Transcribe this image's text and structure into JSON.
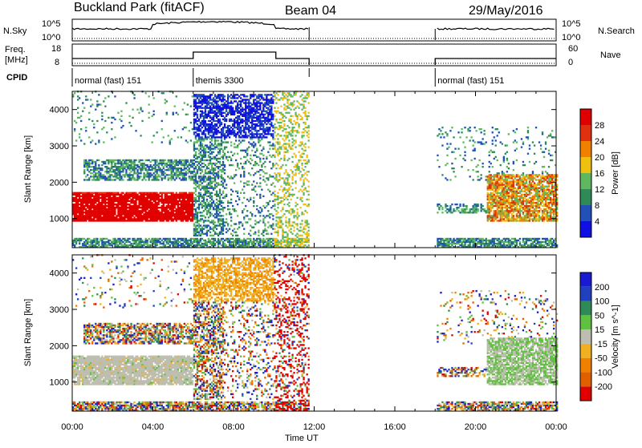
{
  "header": {
    "station": "Buckland Park (fitACF)",
    "beam": "Beam 04",
    "date": "29/May/2016"
  },
  "strip": {
    "nsky_label": "N.Sky",
    "nsky_ticks": [
      "10^5",
      "10^0"
    ],
    "nsearch_label": "N.Search",
    "nsearch_ticks": [
      "10^5",
      "10^0"
    ],
    "freq_label": [
      "Freq.",
      "[MHz]"
    ],
    "freq_ticks": [
      "18",
      "8"
    ],
    "nave_label": "Nave",
    "nave_ticks": [
      "60",
      "0"
    ],
    "cpid_label": "CPID",
    "cpid_segments": [
      {
        "label": "normal (fast) 151",
        "start_h": 0,
        "end_h": 6
      },
      {
        "label": "themis 3300",
        "start_h": 6,
        "end_h": 11.75
      },
      {
        "label": "normal (fast) 151",
        "start_h": 18,
        "end_h": 24
      }
    ]
  },
  "chart_data": [
    {
      "type": "heatmap",
      "name": "power",
      "ylabel": "Slant Range [km]",
      "yticks": [
        1000,
        2000,
        3000,
        4000
      ],
      "ylim": [
        200,
        4500
      ],
      "xlim": [
        0,
        24
      ],
      "colorbar_label": "Power [dB]",
      "colorbar_ticks": [
        4,
        8,
        12,
        16,
        20,
        24,
        28
      ],
      "colorbar_colors": [
        "#1010e0",
        "#2050b8",
        "#2e8b57",
        "#5fb85f",
        "#f0c010",
        "#f08000",
        "#e03010",
        "#e00000"
      ],
      "data_gaps_h": [
        [
          11.75,
          18
        ]
      ]
    },
    {
      "type": "heatmap",
      "name": "velocity",
      "ylabel": "Slant Range [km]",
      "yticks": [
        1000,
        2000,
        3000,
        4000
      ],
      "ylim": [
        200,
        4500
      ],
      "xlim": [
        0,
        24
      ],
      "xlabel": "Time UT",
      "xticks": [
        "00:00",
        "04:00",
        "08:00",
        "12:00",
        "16:00",
        "20:00",
        "00:00"
      ],
      "colorbar_label": "Velocity [m s^-1]",
      "colorbar_ticks": [
        "200",
        "100",
        "50",
        "15",
        "-15",
        "-50",
        "-100",
        "-200"
      ],
      "colorbar_colors": [
        "#1a1ad0",
        "#2040c0",
        "#2e8b57",
        "#60c040",
        "#bdbdb0",
        "#f0b020",
        "#f08000",
        "#e06000",
        "#e00000"
      ],
      "data_gaps_h": [
        [
          11.75,
          18
        ]
      ]
    }
  ]
}
